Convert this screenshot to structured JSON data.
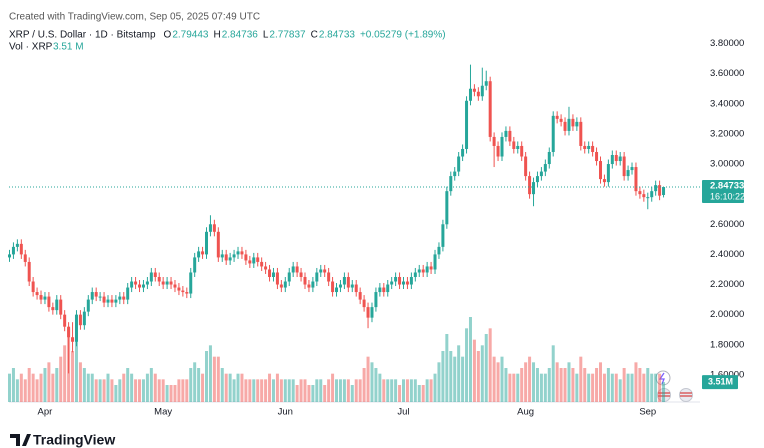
{
  "chart_data": {
    "type": "candlestick",
    "source": "Created with TradingView.com, Sep 05, 2025 07:49 UTC",
    "symbol": "XRP / U.S. Dollar · 1D · Bitstamp",
    "ohlc_keys": [
      "O",
      "H",
      "L",
      "C"
    ],
    "ohlc_values": [
      "2.79443",
      "2.84736",
      "2.77837",
      "2.84733"
    ],
    "change": "+0.05279 (+1.89%)",
    "volume_title": "Vol · XRP",
    "volume_value": "3.51 M",
    "price_tag": "2.84733",
    "countdown": "16:10:22",
    "volume_tag": "3.51M",
    "logo": "TradingView",
    "up_color": "#26a69a",
    "down_color": "#ef5350",
    "grid": false,
    "ylim": [
      1.42,
      3.89
    ],
    "yticks": [
      {
        "value": 1.6,
        "label": "1.60000"
      },
      {
        "value": 1.8,
        "label": "1.80000"
      },
      {
        "value": 2.0,
        "label": "2.00000"
      },
      {
        "value": 2.2,
        "label": "2.20000"
      },
      {
        "value": 2.4,
        "label": "2.40000"
      },
      {
        "value": 2.6,
        "label": "2.60000"
      },
      {
        "value": 2.8,
        "label": "2.80000"
      },
      {
        "value": 3.0,
        "label": "3.00000"
      },
      {
        "value": 3.2,
        "label": "3.20000"
      },
      {
        "value": 3.4,
        "label": "3.40000"
      },
      {
        "value": 3.6,
        "label": "3.60000"
      },
      {
        "value": 3.8,
        "label": "3.80000"
      }
    ],
    "categories": [
      null,
      null,
      null,
      null,
      null,
      null,
      null,
      null,
      null,
      "Apr",
      null,
      null,
      null,
      null,
      null,
      null,
      null,
      null,
      null,
      null,
      null,
      null,
      null,
      null,
      null,
      null,
      null,
      null,
      null,
      null,
      null,
      null,
      null,
      null,
      null,
      null,
      null,
      null,
      null,
      "May",
      null,
      null,
      null,
      null,
      null,
      null,
      null,
      null,
      null,
      null,
      null,
      null,
      null,
      null,
      null,
      null,
      null,
      null,
      null,
      null,
      null,
      null,
      null,
      null,
      null,
      null,
      null,
      null,
      null,
      null,
      "Jun",
      null,
      null,
      null,
      null,
      null,
      null,
      null,
      null,
      null,
      null,
      null,
      null,
      null,
      null,
      null,
      null,
      null,
      null,
      null,
      null,
      null,
      null,
      null,
      null,
      null,
      null,
      null,
      null,
      null,
      "Jul",
      null,
      null,
      null,
      null,
      null,
      null,
      null,
      null,
      null,
      null,
      null,
      null,
      null,
      null,
      null,
      null,
      null,
      null,
      null,
      null,
      null,
      null,
      null,
      null,
      null,
      null,
      null,
      null,
      null,
      null,
      "Aug",
      null,
      null,
      null,
      null,
      null,
      null,
      null,
      null,
      null,
      null,
      null,
      null,
      null,
      null,
      null,
      null,
      null,
      null,
      null,
      null,
      null,
      null,
      null,
      null,
      null,
      null,
      null,
      null,
      null,
      null,
      "Sep",
      null,
      null,
      null,
      null
    ],
    "series": [
      {
        "name": "XRP / U.S. Dollar",
        "open": [
          2.38,
          2.4,
          2.45,
          2.47,
          2.4,
          2.35,
          2.22,
          2.15,
          2.13,
          2.1,
          2.12,
          2.05,
          2.03,
          2.1,
          2.0,
          1.92,
          1.85,
          1.82,
          2.0,
          1.93,
          2.02,
          2.1,
          2.15,
          2.12,
          2.12,
          2.08,
          2.1,
          2.08,
          2.1,
          2.12,
          2.1,
          2.18,
          2.22,
          2.2,
          2.18,
          2.2,
          2.22,
          2.28,
          2.25,
          2.22,
          2.2,
          2.22,
          2.2,
          2.18,
          2.16,
          2.15,
          2.14,
          2.28,
          2.38,
          2.42,
          2.4,
          2.55,
          2.6,
          2.55,
          2.38,
          2.4,
          2.36,
          2.38,
          2.4,
          2.42,
          2.4,
          2.36,
          2.34,
          2.38,
          2.35,
          2.32,
          2.3,
          2.25,
          2.28,
          2.2,
          2.18,
          2.22,
          2.28,
          2.32,
          2.28,
          2.25,
          2.2,
          2.18,
          2.22,
          2.28,
          2.3,
          2.28,
          2.22,
          2.15,
          2.18,
          2.2,
          2.25,
          2.18,
          2.2,
          2.15,
          2.1,
          2.05,
          1.98,
          2.05,
          2.15,
          2.18,
          2.15,
          2.2,
          2.22,
          2.25,
          2.2,
          2.22,
          2.2,
          2.25,
          2.28,
          2.3,
          2.28,
          2.32,
          2.3,
          2.4,
          2.45,
          2.6,
          2.82,
          2.92,
          2.95,
          3.05,
          3.1,
          3.42,
          3.5,
          3.48,
          3.45,
          3.52,
          3.55,
          3.18,
          3.12,
          3.05,
          3.18,
          3.22,
          3.15,
          3.1,
          3.12,
          3.05,
          2.92,
          2.8,
          2.88,
          2.92,
          2.95,
          3.0,
          3.08,
          3.32,
          3.3,
          3.28,
          3.22,
          3.3,
          3.25,
          3.28,
          3.12,
          3.1,
          3.12,
          3.08,
          3.02,
          2.9,
          2.88,
          3.0,
          3.06,
          3.02,
          3.05,
          2.92,
          2.96,
          2.98,
          2.82,
          2.8,
          2.78,
          2.78,
          2.82,
          2.86,
          2.79443
        ],
        "high": [
          2.43,
          2.48,
          2.5,
          2.5,
          2.43,
          2.38,
          2.25,
          2.18,
          2.16,
          2.15,
          2.15,
          2.08,
          2.13,
          2.13,
          2.03,
          1.95,
          1.95,
          2.03,
          2.03,
          2.05,
          2.13,
          2.18,
          2.18,
          2.15,
          2.15,
          2.13,
          2.13,
          2.13,
          2.15,
          2.15,
          2.21,
          2.25,
          2.25,
          2.23,
          2.23,
          2.25,
          2.31,
          2.31,
          2.28,
          2.25,
          2.25,
          2.25,
          2.23,
          2.21,
          2.19,
          2.18,
          2.31,
          2.41,
          2.45,
          2.45,
          2.58,
          2.66,
          2.63,
          2.58,
          2.43,
          2.43,
          2.41,
          2.43,
          2.45,
          2.45,
          2.43,
          2.39,
          2.41,
          2.41,
          2.38,
          2.35,
          2.33,
          2.31,
          2.31,
          2.23,
          2.25,
          2.31,
          2.35,
          2.35,
          2.31,
          2.28,
          2.23,
          2.25,
          2.31,
          2.33,
          2.33,
          2.31,
          2.25,
          2.21,
          2.23,
          2.28,
          2.28,
          2.23,
          2.23,
          2.18,
          2.13,
          2.08,
          2.08,
          2.18,
          2.21,
          2.21,
          2.23,
          2.25,
          2.28,
          2.28,
          2.25,
          2.25,
          2.28,
          2.31,
          2.33,
          2.33,
          2.35,
          2.35,
          2.43,
          2.48,
          2.63,
          2.85,
          2.95,
          2.98,
          3.08,
          3.13,
          3.45,
          3.66,
          3.53,
          3.51,
          3.64,
          3.62,
          3.58,
          3.21,
          3.15,
          3.21,
          3.25,
          3.25,
          3.18,
          3.15,
          3.15,
          3.08,
          2.95,
          2.91,
          2.95,
          2.98,
          3.03,
          3.11,
          3.35,
          3.35,
          3.33,
          3.31,
          3.38,
          3.33,
          3.31,
          3.31,
          3.15,
          3.15,
          3.15,
          3.11,
          3.05,
          2.93,
          3.03,
          3.09,
          3.09,
          3.08,
          3.08,
          2.99,
          3.01,
          3.01,
          2.85,
          2.83,
          2.81,
          2.85,
          2.89,
          2.89,
          2.84736
        ],
        "low": [
          2.35,
          2.37,
          2.42,
          2.37,
          2.32,
          2.19,
          2.12,
          2.1,
          2.07,
          2.07,
          2.02,
          2.0,
          2.0,
          1.97,
          1.89,
          1.61,
          1.75,
          1.79,
          1.9,
          1.9,
          1.99,
          2.07,
          2.09,
          2.09,
          2.05,
          2.05,
          2.05,
          2.05,
          2.07,
          2.07,
          2.07,
          2.15,
          2.17,
          2.15,
          2.15,
          2.17,
          2.19,
          2.22,
          2.19,
          2.17,
          2.17,
          2.17,
          2.15,
          2.13,
          2.12,
          2.11,
          2.11,
          2.25,
          2.35,
          2.37,
          2.37,
          2.52,
          2.52,
          2.35,
          2.35,
          2.33,
          2.33,
          2.35,
          2.37,
          2.37,
          2.33,
          2.31,
          2.31,
          2.32,
          2.29,
          2.27,
          2.22,
          2.22,
          2.17,
          2.15,
          2.15,
          2.19,
          2.25,
          2.25,
          2.22,
          2.17,
          2.15,
          2.15,
          2.19,
          2.25,
          2.25,
          2.19,
          2.12,
          2.12,
          2.15,
          2.17,
          2.15,
          2.15,
          2.12,
          2.07,
          2.02,
          1.91,
          1.95,
          2.02,
          2.12,
          2.12,
          2.12,
          2.17,
          2.19,
          2.17,
          2.17,
          2.17,
          2.17,
          2.22,
          2.25,
          2.25,
          2.25,
          2.27,
          2.27,
          2.37,
          2.42,
          2.57,
          2.79,
          2.89,
          2.92,
          3.02,
          3.07,
          3.39,
          3.45,
          3.42,
          3.42,
          3.49,
          3.15,
          2.98,
          3.02,
          3.02,
          3.15,
          3.12,
          3.07,
          3.07,
          3.02,
          2.89,
          2.77,
          2.72,
          2.85,
          2.89,
          2.92,
          2.97,
          3.05,
          3.27,
          3.25,
          3.19,
          3.19,
          3.22,
          3.22,
          3.09,
          3.07,
          3.07,
          3.05,
          2.99,
          2.87,
          2.85,
          2.85,
          2.97,
          2.99,
          2.99,
          2.89,
          2.89,
          2.93,
          2.79,
          2.77,
          2.75,
          2.7,
          2.75,
          2.79,
          2.76,
          2.77837
        ],
        "close": [
          2.4,
          2.45,
          2.47,
          2.4,
          2.35,
          2.22,
          2.15,
          2.13,
          2.1,
          2.12,
          2.05,
          2.03,
          2.1,
          2.0,
          1.92,
          1.85,
          1.82,
          2.0,
          1.93,
          2.02,
          2.1,
          2.15,
          2.12,
          2.12,
          2.08,
          2.1,
          2.08,
          2.1,
          2.12,
          2.1,
          2.18,
          2.22,
          2.2,
          2.18,
          2.2,
          2.22,
          2.28,
          2.25,
          2.22,
          2.2,
          2.22,
          2.2,
          2.18,
          2.16,
          2.15,
          2.14,
          2.28,
          2.38,
          2.42,
          2.4,
          2.55,
          2.6,
          2.55,
          2.38,
          2.4,
          2.36,
          2.38,
          2.4,
          2.42,
          2.4,
          2.36,
          2.34,
          2.38,
          2.35,
          2.32,
          2.3,
          2.25,
          2.28,
          2.2,
          2.18,
          2.22,
          2.28,
          2.32,
          2.28,
          2.25,
          2.2,
          2.18,
          2.22,
          2.28,
          2.3,
          2.28,
          2.22,
          2.15,
          2.18,
          2.2,
          2.25,
          2.18,
          2.2,
          2.15,
          2.1,
          2.05,
          1.98,
          2.05,
          2.15,
          2.18,
          2.15,
          2.2,
          2.22,
          2.25,
          2.2,
          2.22,
          2.2,
          2.25,
          2.28,
          2.3,
          2.28,
          2.32,
          2.3,
          2.4,
          2.45,
          2.6,
          2.82,
          2.92,
          2.95,
          3.05,
          3.1,
          3.42,
          3.5,
          3.48,
          3.45,
          3.52,
          3.55,
          3.18,
          3.12,
          3.05,
          3.18,
          3.22,
          3.15,
          3.1,
          3.12,
          3.05,
          2.92,
          2.8,
          2.88,
          2.92,
          2.95,
          3.0,
          3.08,
          3.32,
          3.3,
          3.28,
          3.22,
          3.3,
          3.25,
          3.28,
          3.12,
          3.1,
          3.12,
          3.08,
          3.02,
          2.9,
          2.88,
          3.0,
          3.06,
          3.02,
          3.05,
          2.92,
          2.96,
          2.98,
          2.82,
          2.8,
          2.78,
          2.78,
          2.82,
          2.86,
          2.79,
          2.84733
        ]
      }
    ],
    "volume": {
      "name": "Vol",
      "values": [
        5,
        6,
        4,
        5,
        4,
        6,
        5,
        4,
        5,
        6,
        7,
        5,
        6,
        8,
        10,
        13,
        9,
        11,
        7,
        6,
        5,
        5,
        4,
        4,
        4,
        5,
        4,
        3,
        4,
        5,
        6,
        5,
        4,
        4,
        4,
        5,
        6,
        5,
        4,
        4,
        3,
        3,
        3,
        4,
        4,
        4,
        6,
        7,
        6,
        5,
        9,
        10,
        8,
        8,
        6,
        5,
        5,
        4,
        5,
        5,
        4,
        4,
        4,
        4,
        4,
        4,
        5,
        4,
        5,
        4,
        4,
        4,
        4,
        3,
        4,
        4,
        3,
        3,
        4,
        4,
        3,
        4,
        5,
        4,
        4,
        4,
        4,
        3,
        4,
        4,
        6,
        8,
        7,
        6,
        5,
        4,
        4,
        4,
        4,
        3,
        4,
        4,
        4,
        4,
        3,
        3,
        4,
        4,
        5,
        7,
        9,
        12,
        9,
        8,
        10,
        8,
        13,
        15,
        11,
        9,
        10,
        12,
        13,
        8,
        7,
        8,
        6,
        5,
        5,
        5,
        6,
        7,
        8,
        7,
        6,
        5,
        5,
        6,
        10,
        7,
        6,
        6,
        7,
        6,
        5,
        8,
        6,
        5,
        5,
        6,
        7,
        5,
        6,
        5,
        5,
        4,
        6,
        5,
        5,
        7,
        6,
        5,
        6,
        5,
        5,
        5,
        3.51
      ]
    }
  }
}
